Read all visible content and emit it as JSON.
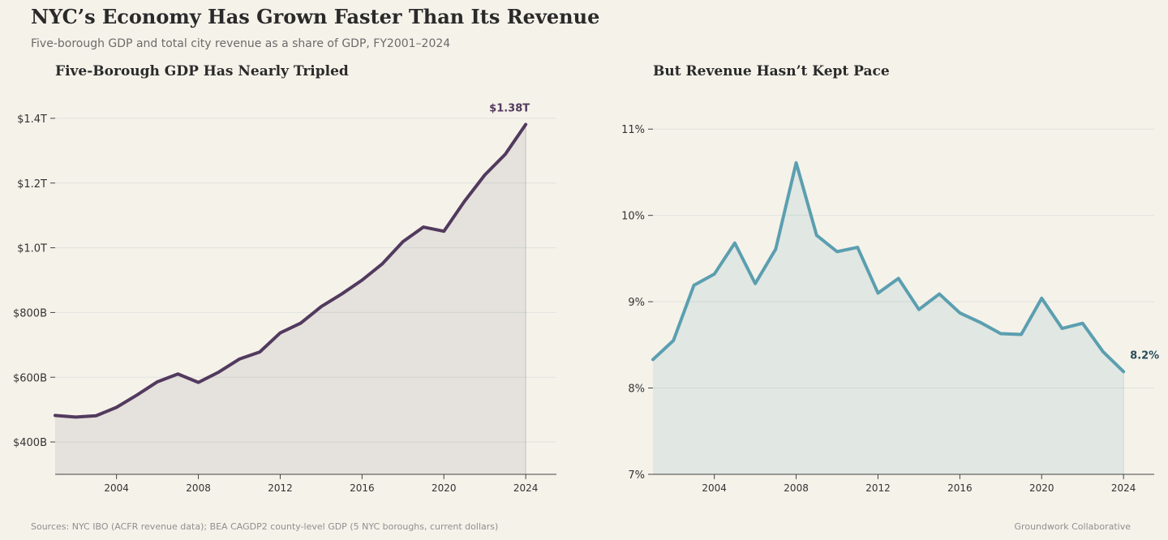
{
  "header": {
    "title": "NYC’s Economy Has Grown Faster Than Its Revenue",
    "subtitle": "Five-borough GDP and total city revenue as a share of GDP, FY2001–2024"
  },
  "footer": {
    "sources": "Sources: NYC IBO (ACFR revenue data); BEA CAGDP2 county-level GDP (5 NYC boroughs, current dollars)",
    "credit": "Groundwork Collaborative"
  },
  "colors": {
    "gdp": "#523a5e",
    "revenue": "#5b9fb0",
    "revenue_label": "#284e5a"
  },
  "chart_data": [
    {
      "type": "area",
      "title": "Five-Borough GDP Has Nearly Tripled",
      "xlabel": "",
      "ylabel": "",
      "x": [
        2001,
        2002,
        2003,
        2004,
        2005,
        2006,
        2007,
        2008,
        2009,
        2010,
        2011,
        2012,
        2013,
        2014,
        2015,
        2016,
        2017,
        2018,
        2019,
        2020,
        2021,
        2022,
        2023,
        2024
      ],
      "values": [
        482,
        477,
        481,
        507,
        545,
        586,
        610,
        584,
        616,
        656,
        678,
        737,
        767,
        818,
        857,
        900,
        951,
        1019,
        1064,
        1051,
        1143,
        1225,
        1289,
        1381
      ],
      "units": "billions USD",
      "xlim": [
        2001,
        2025.5
      ],
      "ylim": [
        300,
        1500
      ],
      "yticks": [
        400,
        600,
        800,
        1000,
        1200,
        1400
      ],
      "ytick_labels": [
        "$400B",
        "$600B",
        "$800B",
        "$1.0T",
        "$1.2T",
        "$1.4T"
      ],
      "xticks": [
        2004,
        2008,
        2012,
        2016,
        2020,
        2024
      ],
      "xtick_labels": [
        "2004",
        "2008",
        "2012",
        "2016",
        "2020",
        "2024"
      ],
      "end_label": "$1.38T",
      "grid": true
    },
    {
      "type": "area",
      "title": "But Revenue Hasn’t Kept Pace",
      "xlabel": "",
      "ylabel": "",
      "x": [
        2001,
        2002,
        2003,
        2004,
        2005,
        2006,
        2007,
        2008,
        2009,
        2010,
        2011,
        2012,
        2013,
        2014,
        2015,
        2016,
        2017,
        2018,
        2019,
        2020,
        2021,
        2022,
        2023,
        2024
      ],
      "values": [
        8.33,
        8.55,
        9.19,
        9.32,
        9.68,
        9.21,
        9.61,
        10.61,
        9.77,
        9.58,
        9.63,
        9.1,
        9.27,
        8.91,
        9.09,
        8.87,
        8.76,
        8.63,
        8.62,
        9.04,
        8.69,
        8.75,
        8.42,
        8.19
      ],
      "units": "percent of GDP",
      "xlim": [
        2001,
        2025.5
      ],
      "ylim": [
        7,
        11.5
      ],
      "yticks": [
        7,
        8,
        9,
        10,
        11
      ],
      "ytick_labels": [
        "7%",
        "8%",
        "9%",
        "10%",
        "11%"
      ],
      "xticks": [
        2004,
        2008,
        2012,
        2016,
        2020,
        2024
      ],
      "xtick_labels": [
        "2004",
        "2008",
        "2012",
        "2016",
        "2020",
        "2024"
      ],
      "end_label": "8.2%",
      "grid": true
    }
  ]
}
